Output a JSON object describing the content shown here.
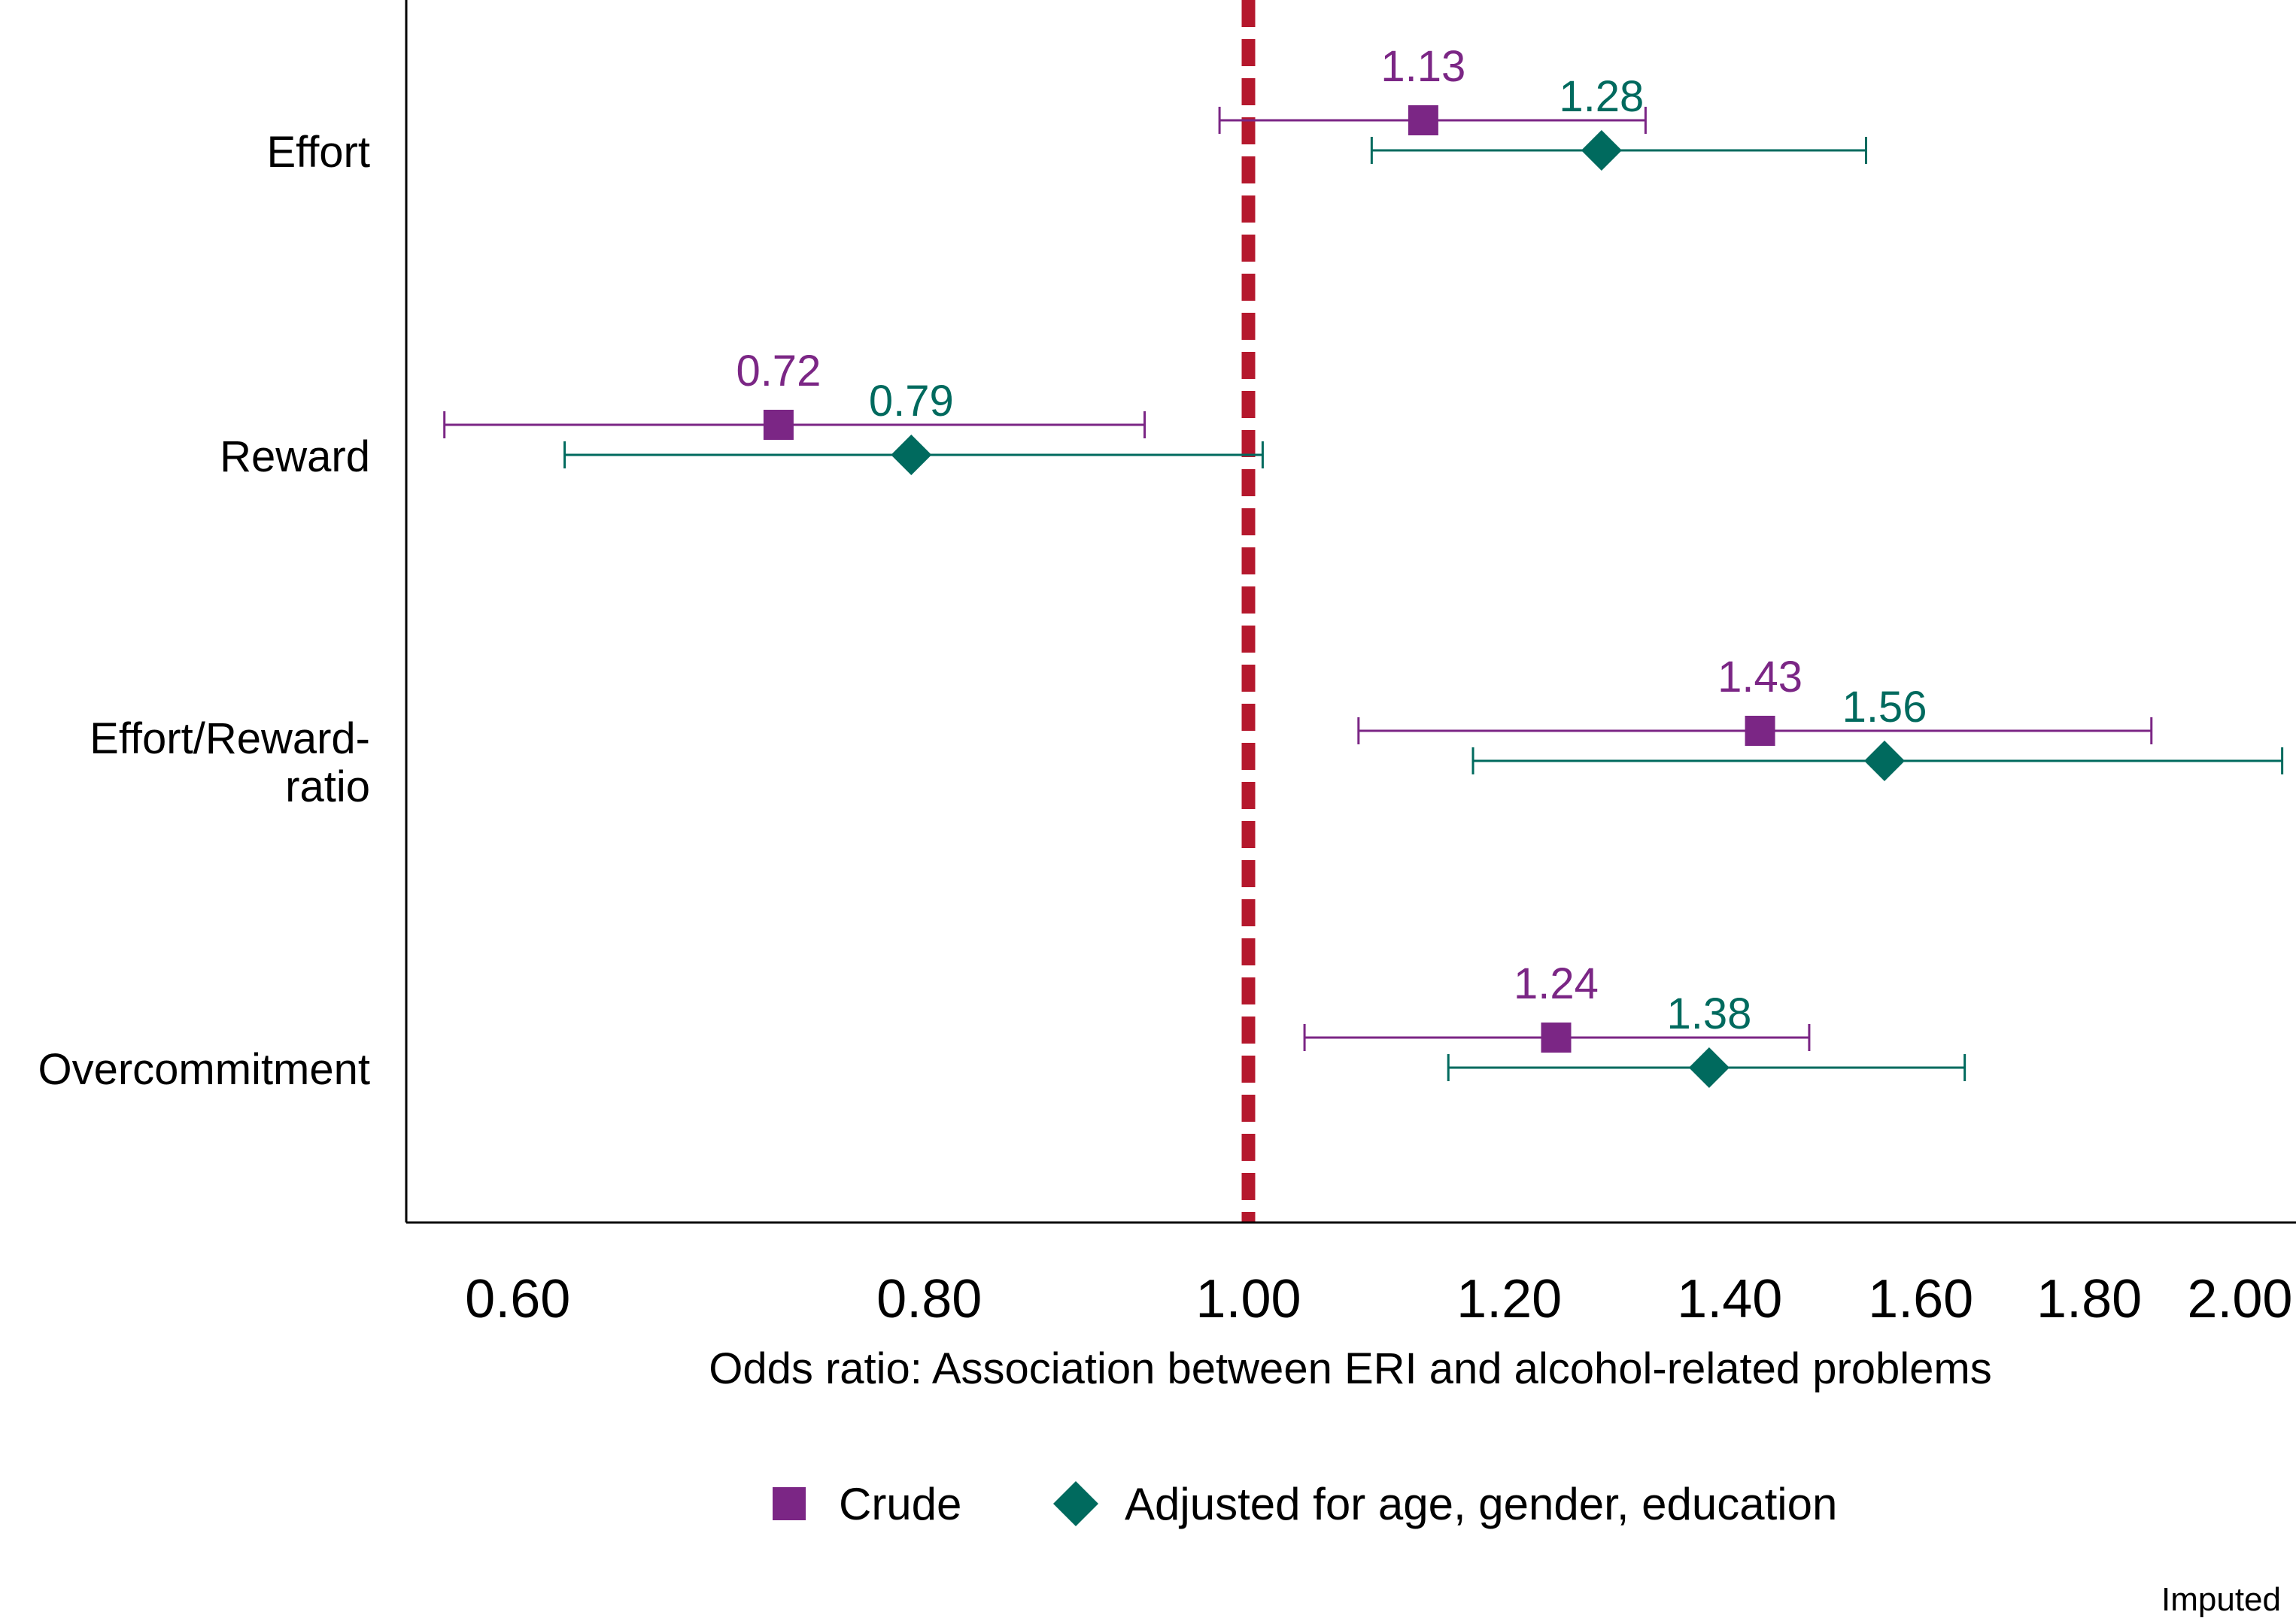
{
  "chart_data": {
    "type": "forest",
    "x_scale": "log",
    "xlabel": "Odds ratio: Association between ERI and alcohol-related problems",
    "xlim": [
      0.555,
      2.08
    ],
    "xticks": [
      {
        "value": 0.6,
        "label": "0.60"
      },
      {
        "value": 0.8,
        "label": "0.80"
      },
      {
        "value": 1.0,
        "label": "1.00"
      },
      {
        "value": 1.2,
        "label": "1.20"
      },
      {
        "value": 1.4,
        "label": "1.40"
      },
      {
        "value": 1.6,
        "label": "1.60"
      },
      {
        "value": 1.8,
        "label": "1.80"
      },
      {
        "value": 2.0,
        "label": "2.00"
      }
    ],
    "reference_line": {
      "value": 1.0,
      "color": "#b5182d",
      "style": "dashed"
    },
    "categories": [
      {
        "key": "effort",
        "lines": [
          "Effort"
        ]
      },
      {
        "key": "reward",
        "lines": [
          "Reward"
        ]
      },
      {
        "key": "eri_ratio",
        "lines": [
          "Effort/Reward-",
          "ratio"
        ]
      },
      {
        "key": "overcommitment",
        "lines": [
          "Overcommitment"
        ]
      }
    ],
    "series": [
      {
        "name": "Crude",
        "marker": "square",
        "color": "#7b2685",
        "points": [
          {
            "category": "effort",
            "or": 1.13,
            "label": "1.13",
            "ci": [
              0.98,
              1.32
            ]
          },
          {
            "category": "reward",
            "or": 0.72,
            "label": "0.72",
            "ci": [
              0.57,
              0.93
            ]
          },
          {
            "category": "eri_ratio",
            "or": 1.43,
            "label": "1.43",
            "ci": [
              1.08,
              1.88
            ]
          },
          {
            "category": "overcommitment",
            "or": 1.24,
            "label": "1.24",
            "ci": [
              1.04,
              1.48
            ]
          }
        ]
      },
      {
        "name": "Adjusted for age, gender, education",
        "marker": "diamond",
        "color": "#006a5e",
        "points": [
          {
            "category": "effort",
            "or": 1.28,
            "label": "1.28",
            "ci": [
              1.09,
              1.54
            ]
          },
          {
            "category": "reward",
            "or": 0.79,
            "label": "0.79",
            "ci": [
              0.62,
              1.01
            ]
          },
          {
            "category": "eri_ratio",
            "or": 1.56,
            "label": "1.56",
            "ci": [
              1.17,
              2.06
            ]
          },
          {
            "category": "overcommitment",
            "or": 1.38,
            "label": "1.38",
            "ci": [
              1.15,
              1.65
            ]
          }
        ]
      }
    ],
    "legend_position": "bottom",
    "note": "Imputed"
  }
}
